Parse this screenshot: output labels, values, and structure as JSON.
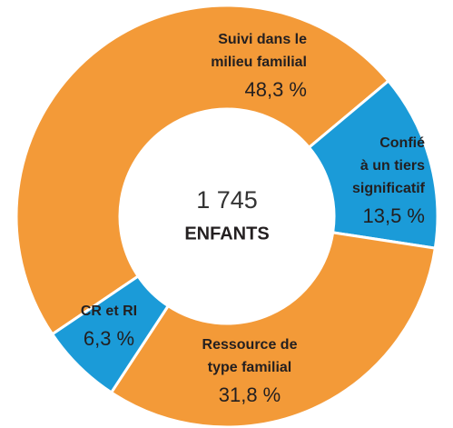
{
  "chart_data": {
    "type": "donut",
    "categories": [
      "Suivi dans le\nmilieu familial",
      "Confié\nà un tiers\nsignificatif",
      "Ressource de\ntype familial",
      "CR et RI"
    ],
    "values": [
      48.3,
      13.5,
      31.8,
      6.3
    ],
    "value_labels": [
      "48,3 %",
      "13,5 %",
      "31,8 %",
      "6,3 %"
    ],
    "colors": [
      "#f39a38",
      "#1b9bd8",
      "#f39a38",
      "#1b9bd8"
    ],
    "center_value": "1 745",
    "center_label": "ENFANTS"
  }
}
